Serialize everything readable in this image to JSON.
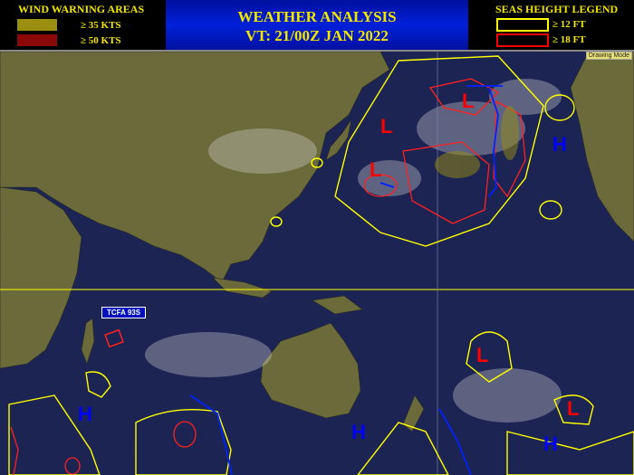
{
  "wind_legend": {
    "title": "WIND WARNING AREAS",
    "items": [
      {
        "label": "≥ 35 KTS",
        "color": "#9a8f10"
      },
      {
        "label": "≥ 50 KTS",
        "color": "#8a0808"
      }
    ]
  },
  "header": {
    "title": "WEATHER ANALYSIS",
    "valid_time": "VT: 21/00Z JAN 2022"
  },
  "seas_legend": {
    "title": "SEAS HEIGHT  LEGEND",
    "items": [
      {
        "label": "≥ 12 FT",
        "color": "#ffff00"
      },
      {
        "label": "≥ 18 FT",
        "color": "#ff0000"
      }
    ]
  },
  "map": {
    "drawing_mode": "Drawing Mode",
    "tcfa_label": "TCFA 93S",
    "low_symbol": "L",
    "high_symbol": "H",
    "colors": {
      "ocean": "#1c2454",
      "land": "#6b6a3a",
      "low": "#ff0000",
      "high": "#0000ff",
      "front": "#0022ff"
    }
  }
}
